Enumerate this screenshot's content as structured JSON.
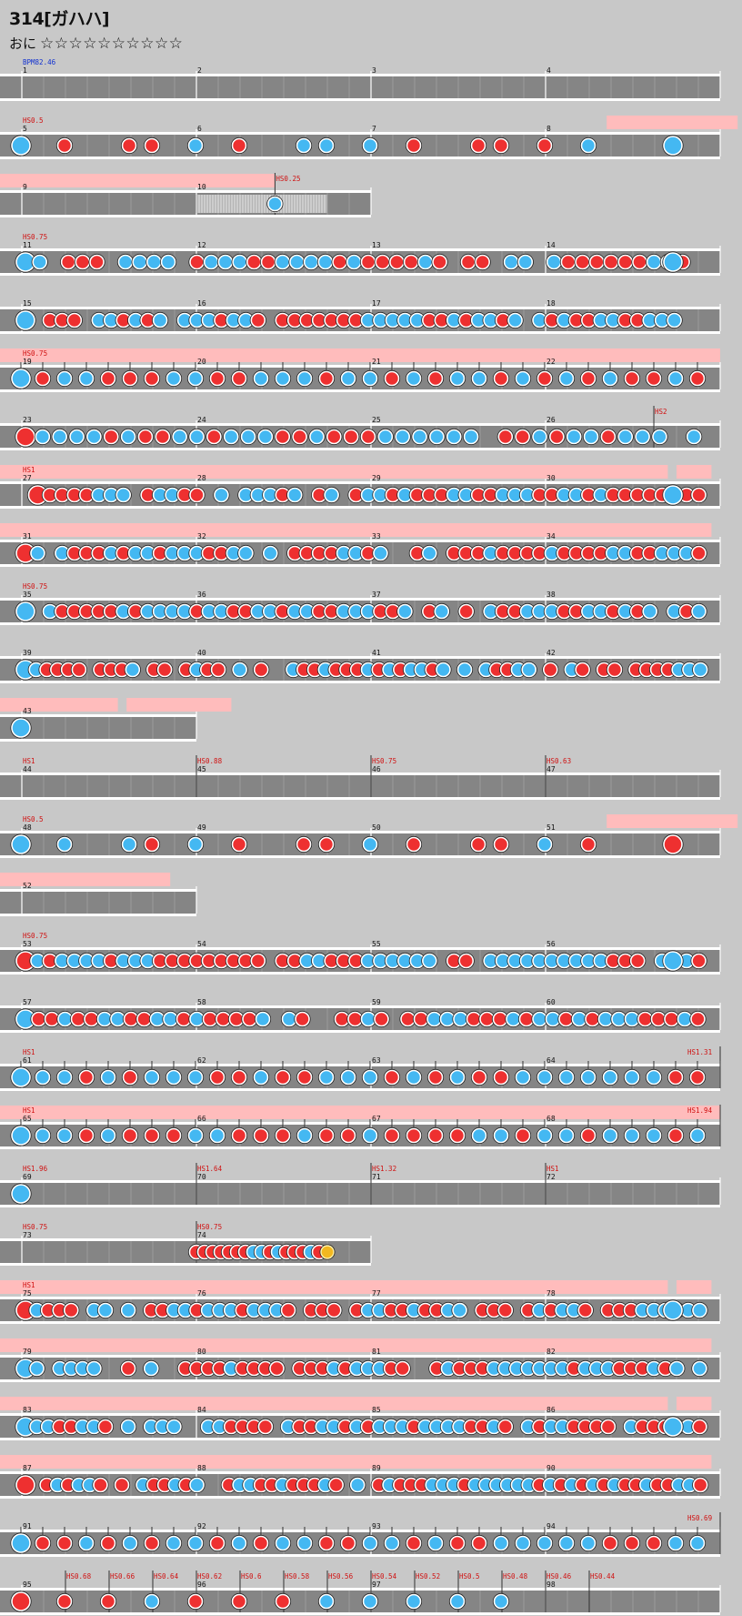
{
  "header": {
    "title": "314[ガハハ]",
    "course_label": "おに",
    "stars": "☆☆☆☆☆☆☆☆☆☆"
  },
  "chart_data": {
    "type": "taiko-chart",
    "row_step_px": 64,
    "colors": {
      "background": "#c8c8c8",
      "lane": "#858585",
      "border": "#ffffff",
      "gogo": "#ffbcbc",
      "don": "#ee3030",
      "ka": "#44b8f2",
      "balloon": "#f2b820",
      "event_text": "#d01010",
      "bpm_text": "#1030d0"
    },
    "rows": [
      {
        "bars": 4,
        "measures": [
          1,
          2,
          3,
          4
        ],
        "events": [
          {
            "t": 0,
            "text": "BPM82.46",
            "kind": "bpm"
          }
        ],
        "pattern": "empty",
        "density": 0
      },
      {
        "bars": 4,
        "measures": [
          5,
          6,
          7,
          8
        ],
        "events": [
          {
            "t": 0,
            "text": "HS0.5"
          }
        ],
        "pattern": "sparse",
        "density": 4,
        "gogo": [
          [
            3.35,
            4.1
          ]
        ],
        "end_big": true
      },
      {
        "bars": 2,
        "measures": [
          9,
          10
        ],
        "events": [
          {
            "t": 1.45,
            "text": "HS0.25"
          }
        ],
        "pattern": "roll",
        "density": 0,
        "gogo": [
          [
            0,
            1.45
          ]
        ],
        "extra": "roll"
      },
      {
        "bars": 4,
        "measures": [
          11,
          12,
          13,
          14
        ],
        "events": [
          {
            "t": 0,
            "text": "HS0.75"
          }
        ],
        "pattern": "dense",
        "density": 12,
        "end_big": true
      },
      {
        "bars": 4,
        "measures": [
          15,
          16,
          17,
          18
        ],
        "events": [],
        "pattern": "dense",
        "density": 14
      },
      {
        "bars": 4,
        "measures": [
          19,
          20,
          21,
          22
        ],
        "events": [
          {
            "t": 0,
            "text": "HS0.75"
          }
        ],
        "pattern": "tick",
        "density": 8,
        "gogo": [
          [
            0,
            4
          ]
        ]
      },
      {
        "bars": 4,
        "measures": [
          23,
          24,
          25,
          26
        ],
        "events": [
          {
            "t": 3.62,
            "text": "HS2"
          }
        ],
        "pattern": "dense",
        "density": 10
      },
      {
        "bars": 4,
        "measures": [
          27,
          28,
          29,
          30
        ],
        "events": [
          {
            "t": 0,
            "text": "HS1"
          }
        ],
        "pattern": "dense",
        "density": 14,
        "gogo": [
          [
            0,
            3.7
          ],
          [
            3.75,
            3.95
          ]
        ],
        "end_big": true
      },
      {
        "bars": 4,
        "measures": [
          31,
          32,
          33,
          34
        ],
        "events": [],
        "pattern": "dense",
        "density": 14,
        "gogo": [
          [
            0,
            3.95
          ]
        ]
      },
      {
        "bars": 4,
        "measures": [
          35,
          36,
          37,
          38
        ],
        "events": [
          {
            "t": 0,
            "text": "HS0.75"
          }
        ],
        "pattern": "dense",
        "density": 14
      },
      {
        "bars": 4,
        "measures": [
          39,
          40,
          41,
          42
        ],
        "events": [],
        "pattern": "dense",
        "density": 16
      },
      {
        "bars": 1,
        "measures": [
          43
        ],
        "events": [],
        "pattern": "single",
        "density": 0,
        "gogo": [
          [
            0,
            0.55
          ],
          [
            0.6,
            1.2
          ]
        ]
      },
      {
        "bars": 4,
        "measures": [
          44,
          45,
          46,
          47
        ],
        "events": [
          {
            "t": 0,
            "text": "HS1"
          },
          {
            "t": 1,
            "text": "HS0.88"
          },
          {
            "t": 2,
            "text": "HS0.75"
          },
          {
            "t": 3,
            "text": "HS0.63"
          }
        ],
        "pattern": "empty",
        "density": 0
      },
      {
        "bars": 4,
        "measures": [
          48,
          49,
          50,
          51
        ],
        "events": [
          {
            "t": 0,
            "text": "HS0.5"
          }
        ],
        "pattern": "sparse",
        "density": 4,
        "gogo": [
          [
            3.35,
            4.1
          ]
        ],
        "end_big": true
      },
      {
        "bars": 1,
        "measures": [
          52
        ],
        "events": [],
        "pattern": "empty",
        "density": 0,
        "gogo": [
          [
            0,
            0.85
          ]
        ]
      },
      {
        "bars": 4,
        "measures": [
          53,
          54,
          55,
          56
        ],
        "events": [
          {
            "t": 0,
            "text": "HS0.75"
          }
        ],
        "pattern": "dense",
        "density": 14,
        "end_big": true
      },
      {
        "bars": 4,
        "measures": [
          57,
          58,
          59,
          60
        ],
        "events": [],
        "pattern": "dense",
        "density": 13
      },
      {
        "bars": 4,
        "measures": [
          61,
          62,
          63,
          64
        ],
        "events": [
          {
            "t": 0,
            "text": "HS1"
          },
          {
            "t": 4,
            "text": "HS1.31"
          }
        ],
        "pattern": "tick",
        "density": 8
      },
      {
        "bars": 4,
        "measures": [
          65,
          66,
          67,
          68
        ],
        "events": [
          {
            "t": 0,
            "text": "HS1"
          },
          {
            "t": 4,
            "text": "HS1.94"
          }
        ],
        "pattern": "tick",
        "density": 8,
        "gogo": [
          [
            0,
            4
          ]
        ]
      },
      {
        "bars": 4,
        "measures": [
          69,
          70,
          71,
          72
        ],
        "events": [
          {
            "t": 0,
            "text": "HS1.96"
          },
          {
            "t": 1,
            "text": "HS1.64"
          },
          {
            "t": 2,
            "text": "HS1.32"
          },
          {
            "t": 3,
            "text": "HS1"
          }
        ],
        "pattern": "single",
        "density": 0
      },
      {
        "bars": 2,
        "measures": [
          73,
          74
        ],
        "events": [
          {
            "t": 0,
            "text": "HS0.75"
          },
          {
            "t": 1,
            "text": "HS0.75"
          }
        ],
        "pattern": "burst",
        "density": 0,
        "extra": "balloon"
      },
      {
        "bars": 4,
        "measures": [
          75,
          76,
          77,
          78
        ],
        "events": [
          {
            "t": 0,
            "text": "HS1"
          }
        ],
        "pattern": "dense",
        "density": 15,
        "gogo": [
          [
            0,
            3.7
          ],
          [
            3.75,
            3.95
          ]
        ],
        "end_big": true
      },
      {
        "bars": 4,
        "measures": [
          79,
          80,
          81,
          82
        ],
        "events": [],
        "pattern": "dense",
        "density": 15,
        "gogo": [
          [
            0,
            3.95
          ]
        ]
      },
      {
        "bars": 4,
        "measures": [
          83,
          84,
          85,
          86
        ],
        "events": [],
        "pattern": "dense",
        "density": 15,
        "gogo": [
          [
            0,
            3.7
          ],
          [
            3.75,
            3.95
          ]
        ],
        "end_big": true
      },
      {
        "bars": 4,
        "measures": [
          87,
          88,
          89,
          90
        ],
        "events": [],
        "pattern": "dense",
        "density": 16,
        "gogo": [
          [
            0,
            3.95
          ]
        ]
      },
      {
        "bars": 4,
        "measures": [
          91,
          92,
          93,
          94
        ],
        "events": [
          {
            "t": 4,
            "text": "HS0.69"
          }
        ],
        "pattern": "tick",
        "density": 8
      },
      {
        "bars": 4,
        "measures": [
          95,
          96,
          97,
          98
        ],
        "events": [
          {
            "t": 0.25,
            "text": "HS0.68"
          },
          {
            "t": 0.5,
            "text": "HS0.66"
          },
          {
            "t": 0.75,
            "text": "HS0.64"
          },
          {
            "t": 1,
            "text": "HS0.62"
          },
          {
            "t": 1.25,
            "text": "HS0.6"
          },
          {
            "t": 1.5,
            "text": "HS0.58"
          },
          {
            "t": 1.75,
            "text": "HS0.56"
          },
          {
            "t": 2,
            "text": "HS0.54"
          },
          {
            "t": 2.25,
            "text": "HS0.52"
          },
          {
            "t": 2.5,
            "text": "HS0.5"
          },
          {
            "t": 2.75,
            "text": "HS0.48"
          },
          {
            "t": 3,
            "text": "HS0.46"
          },
          {
            "t": 3.25,
            "text": "HS0.44"
          }
        ],
        "pattern": "quarter",
        "density": 0
      }
    ]
  }
}
